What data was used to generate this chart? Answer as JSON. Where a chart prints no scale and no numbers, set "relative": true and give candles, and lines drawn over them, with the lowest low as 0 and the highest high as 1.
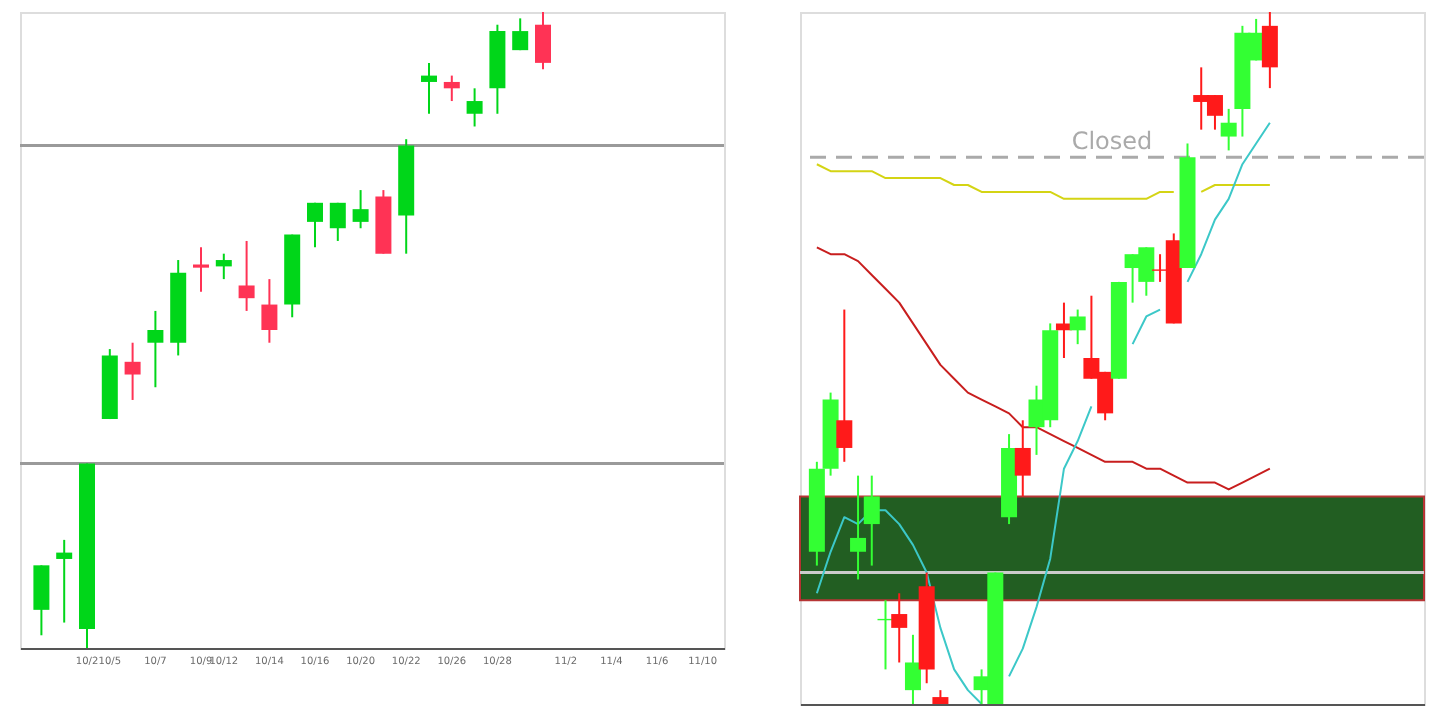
{
  "chart_data": [
    {
      "type": "candlestick",
      "relative": true,
      "tick_labels": "x",
      "grid": false,
      "categories": [
        null,
        null,
        "10/2",
        "10/5",
        null,
        "10/7",
        null,
        "10/9",
        "10/12",
        null,
        "10/14",
        null,
        "10/16",
        null,
        "10/20",
        null,
        "10/22",
        null,
        "10/26",
        null,
        "10/28",
        null,
        null,
        "11/2",
        null,
        "11/4",
        null,
        "11/6",
        null,
        "11/10"
      ],
      "ohlc": [
        [
          0.06,
          0.13,
          0.02,
          0.13
        ],
        [
          0.14,
          0.17,
          0.04,
          0.15
        ],
        [
          0.03,
          0.29,
          0,
          0.29
        ],
        [
          0.36,
          0.47,
          0.36,
          0.46
        ],
        [
          0.45,
          0.48,
          0.39,
          0.43
        ],
        [
          0.48,
          0.53,
          0.41,
          0.5
        ],
        [
          0.48,
          0.61,
          0.46,
          0.59
        ],
        [
          0.603,
          0.63,
          0.56,
          0.598
        ],
        [
          0.6,
          0.62,
          0.58,
          0.61
        ],
        [
          0.57,
          0.64,
          0.53,
          0.55
        ],
        [
          0.54,
          0.58,
          0.48,
          0.5
        ],
        [
          0.54,
          0.65,
          0.52,
          0.65
        ],
        [
          0.67,
          0.7,
          0.63,
          0.7
        ],
        [
          0.66,
          0.7,
          0.64,
          0.7
        ],
        [
          0.67,
          0.72,
          0.66,
          0.69
        ],
        [
          0.71,
          0.72,
          0.62,
          0.62
        ],
        [
          0.68,
          0.8,
          0.62,
          0.79
        ],
        [
          0.89,
          0.92,
          0.84,
          0.9
        ],
        [
          0.89,
          0.9,
          0.86,
          0.88
        ],
        [
          0.84,
          0.88,
          0.82,
          0.86
        ],
        [
          0.88,
          0.98,
          0.84,
          0.97
        ],
        [
          0.94,
          0.99,
          0.94,
          0.97
        ],
        [
          0.98,
          1,
          0.91,
          0.92
        ],
        null,
        null,
        null,
        null,
        null,
        null,
        null
      ],
      "colors": [
        "#00d619",
        "#00d619",
        "#00d619",
        "#00d619",
        "#ff3355",
        "#00d619",
        "#00d619",
        "#ff3355",
        "#00d619",
        "#ff3355",
        "#ff3355",
        "#00d619",
        "#00d619",
        "#00d619",
        "#00d619",
        "#ff3355",
        "#00d619",
        "#00d619",
        "#ff3355",
        "#00d619",
        "#00d619",
        "#00d619",
        "#ff3355",
        null,
        null,
        null,
        null,
        null,
        null,
        null
      ],
      "ref_lines": [
        {
          "axis": "y",
          "value": 0.29,
          "color": "#9a9a9a",
          "line_style": "solid"
        },
        {
          "axis": "y",
          "value": 0.79,
          "color": "#9a9a9a",
          "line_style": "solid"
        }
      ]
    },
    {
      "type": "candlestick",
      "relative": true,
      "tick_labels": false,
      "grid": false,
      "categories": [
        null,
        null,
        null,
        null,
        null,
        null,
        null,
        null,
        null,
        null,
        null,
        null,
        null,
        null,
        null,
        null,
        null,
        null,
        null,
        null,
        null,
        null,
        null,
        null,
        null,
        null,
        null,
        null,
        null,
        null,
        null,
        null,
        null,
        null
      ],
      "ohlc": [
        [
          0.22,
          0.35,
          0.2,
          0.34
        ],
        [
          0.34,
          0.45,
          0.33,
          0.44
        ],
        [
          0.41,
          0.57,
          0.35,
          0.37
        ],
        [
          0.22,
          0.33,
          0.18,
          0.24
        ],
        [
          0.26,
          0.33,
          0.2,
          0.3
        ],
        [
          0.121,
          0.15,
          0.05,
          0.123
        ],
        [
          0.13,
          0.16,
          0.06,
          0.11
        ],
        [
          0.02,
          0.1,
          0,
          0.06
        ],
        [
          0.17,
          0.19,
          0.03,
          0.05
        ],
        [
          0.01,
          0.02,
          0,
          0
        ],
        null,
        null,
        [
          0.02,
          0.05,
          0,
          0.04
        ],
        [
          0,
          0.19,
          0,
          0.19
        ],
        [
          0.27,
          0.39,
          0.26,
          0.37
        ],
        [
          0.37,
          0.41,
          0.3,
          0.33
        ],
        [
          0.4,
          0.46,
          0.36,
          0.44
        ],
        [
          0.41,
          0.55,
          0.4,
          0.54
        ],
        [
          0.55,
          0.58,
          0.5,
          0.54
        ],
        [
          0.54,
          0.57,
          0.52,
          0.56
        ],
        [
          0.5,
          0.59,
          0.47,
          0.47
        ],
        [
          0.48,
          0.48,
          0.41,
          0.42
        ],
        [
          0.47,
          0.61,
          0.47,
          0.61
        ],
        [
          0.63,
          0.65,
          0.58,
          0.65
        ],
        [
          0.61,
          0.66,
          0.59,
          0.66
        ],
        [
          0.628,
          0.65,
          0.61,
          0.626
        ],
        [
          0.67,
          0.68,
          0.55,
          0.55
        ],
        [
          0.63,
          0.81,
          0.63,
          0.79
        ],
        [
          0.88,
          0.92,
          0.83,
          0.87
        ],
        [
          0.88,
          0.88,
          0.83,
          0.85
        ],
        [
          0.82,
          0.86,
          0.8,
          0.84
        ],
        [
          0.86,
          0.98,
          0.82,
          0.97
        ],
        [
          0.93,
          0.99,
          0.93,
          0.97
        ],
        [
          0.98,
          1,
          0.89,
          0.92
        ]
      ],
      "colors": [
        "#33ff33",
        "#33ff33",
        "#ff1a1a",
        "#33ff33",
        "#33ff33",
        "#33ff33",
        "#ff1a1a",
        "#33ff33",
        "#ff1a1a",
        "#ff1a1a",
        null,
        null,
        "#33ff33",
        "#33ff33",
        "#33ff33",
        "#ff1a1a",
        "#33ff33",
        "#33ff33",
        "#ff1a1a",
        "#33ff33",
        "#ff1a1a",
        "#ff1a1a",
        "#33ff33",
        "#33ff33",
        "#33ff33",
        "#ff1a1a",
        "#ff1a1a",
        "#33ff33",
        "#ff1a1a",
        "#ff1a1a",
        "#33ff33",
        "#33ff33",
        "#33ff33",
        "#ff1a1a"
      ],
      "series": [
        {
          "type": "line",
          "color": "#d4d414",
          "values": [
            0.78,
            0.77,
            0.77,
            0.77,
            0.77,
            0.76,
            0.76,
            0.76,
            0.76,
            0.76,
            0.75,
            0.75,
            0.74,
            0.74,
            0.74,
            0.74,
            0.74,
            0.74,
            0.73,
            0.73,
            0.73,
            0.73,
            0.73,
            0.73,
            0.73,
            0.74,
            0.74,
            null,
            0.74,
            0.75,
            0.75,
            0.75,
            0.75,
            0.75
          ]
        },
        {
          "type": "line",
          "color": "#c81e1e",
          "values": [
            0.66,
            0.65,
            0.65,
            0.64,
            0.62,
            0.6,
            0.58,
            0.55,
            0.52,
            0.49,
            0.47,
            0.45,
            0.44,
            0.43,
            0.42,
            0.4,
            0.4,
            0.39,
            0.38,
            0.37,
            0.36,
            0.35,
            0.35,
            0.35,
            0.34,
            0.34,
            0.33,
            0.32,
            0.32,
            0.32,
            0.31,
            0.32,
            0.33,
            0.34
          ]
        },
        {
          "type": "line",
          "color": "#3cc8c8",
          "values": [
            0.16,
            0.22,
            0.27,
            0.26,
            0.28,
            0.28,
            0.26,
            0.23,
            0.19,
            0.11,
            0.05,
            0.02,
            0,
            null,
            0.04,
            0.08,
            0.14,
            0.21,
            0.34,
            0.38,
            0.43,
            null,
            null,
            0.52,
            0.56,
            0.57,
            null,
            0.61,
            0.65,
            0.7,
            0.73,
            0.78,
            0.81,
            0.84
          ]
        }
      ],
      "ref_lines": [
        {
          "axis": "y",
          "value": 0.79,
          "label": "Closed",
          "color": "#aaaaaa",
          "line_style": "dashed"
        },
        {
          "axis": "y",
          "value": 0.19,
          "color": "#cccccc",
          "line_style": "solid"
        }
      ],
      "bands": [
        {
          "axis": "y",
          "from": 0.15,
          "to": 0.3,
          "color": "#0b4d0b"
        }
      ]
    }
  ]
}
